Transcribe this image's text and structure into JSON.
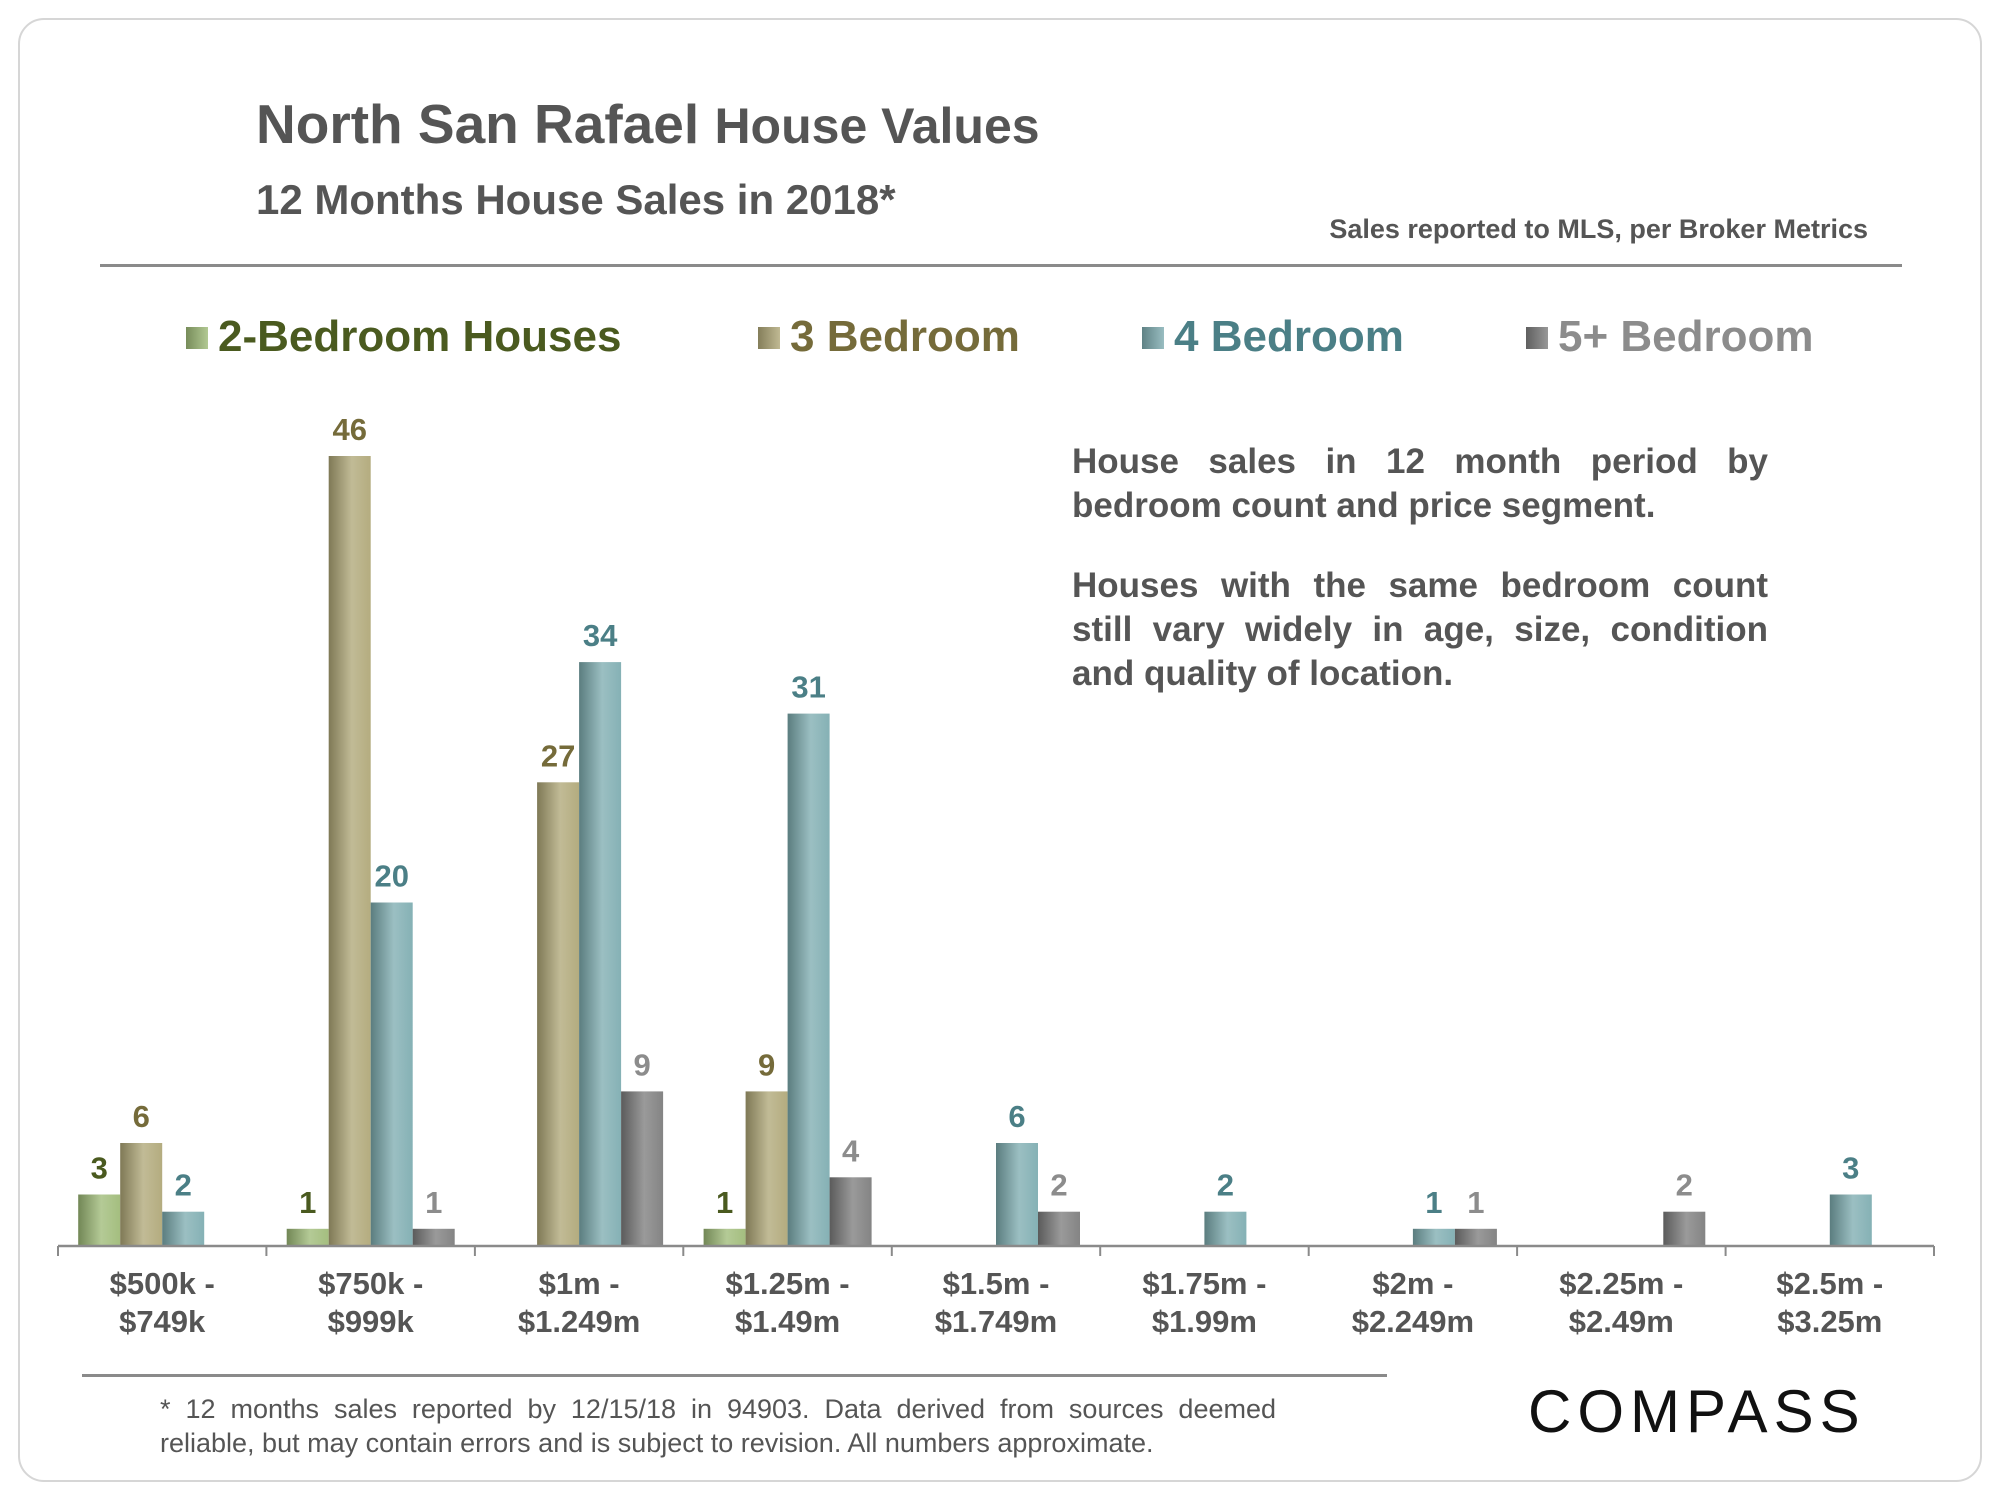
{
  "header": {
    "title_main": "North San Rafael",
    "title_rest": "House Values",
    "subtitle": "12 Months House Sales in 2018*",
    "source": "Sales reported to MLS, per Broker Metrics"
  },
  "notes": {
    "p1": "House sales in 12 month period by bedroom count and price segment.",
    "p2": "Houses with the same bedroom count still vary widely in age, size, condition and quality of location."
  },
  "footnote": "* 12 months sales reported by 12/15/18 in 94903. Data derived from sources deemed reliable, but may contain errors and is subject to revision. All numbers approximate.",
  "logo": {
    "text": "COMPASS"
  },
  "colors": {
    "bed2": "#9fbb78",
    "bed3": "#b0a878",
    "bed4": "#7fadb1",
    "bed5": "#7e7e7e",
    "label2": "#4a5a1f",
    "label3": "#756b3a",
    "label4": "#4b7f86",
    "label5": "#8c8c8c"
  },
  "chart_data": {
    "type": "bar",
    "title": "North San Rafael House Values",
    "xlabel": "",
    "ylabel": "",
    "ylim": [
      0,
      46
    ],
    "grid": false,
    "legend_position": "top",
    "categories": [
      [
        "$500k -",
        "$749k"
      ],
      [
        "$750k -",
        "$999k"
      ],
      [
        "$1m -",
        "$1.249m"
      ],
      [
        "$1.25m -",
        "$1.49m"
      ],
      [
        "$1.5m -",
        "$1.749m"
      ],
      [
        "$1.75m -",
        "$1.99m"
      ],
      [
        "$2m -",
        "$2.249m"
      ],
      [
        "$2.25m -",
        "$2.49m"
      ],
      [
        "$2.5m -",
        "$3.25m"
      ]
    ],
    "series": [
      {
        "name": "2-Bedroom Houses",
        "key": "bed2",
        "values": [
          3,
          1,
          null,
          1,
          null,
          null,
          null,
          null,
          null
        ]
      },
      {
        "name": "3 Bedroom",
        "key": "bed3",
        "values": [
          6,
          46,
          27,
          9,
          null,
          null,
          null,
          null,
          null
        ]
      },
      {
        "name": "4 Bedroom",
        "key": "bed4",
        "values": [
          2,
          20,
          34,
          31,
          6,
          2,
          1,
          null,
          3
        ]
      },
      {
        "name": "5+ Bedroom",
        "key": "bed5",
        "values": [
          null,
          1,
          9,
          4,
          2,
          null,
          1,
          2,
          null
        ]
      }
    ]
  }
}
